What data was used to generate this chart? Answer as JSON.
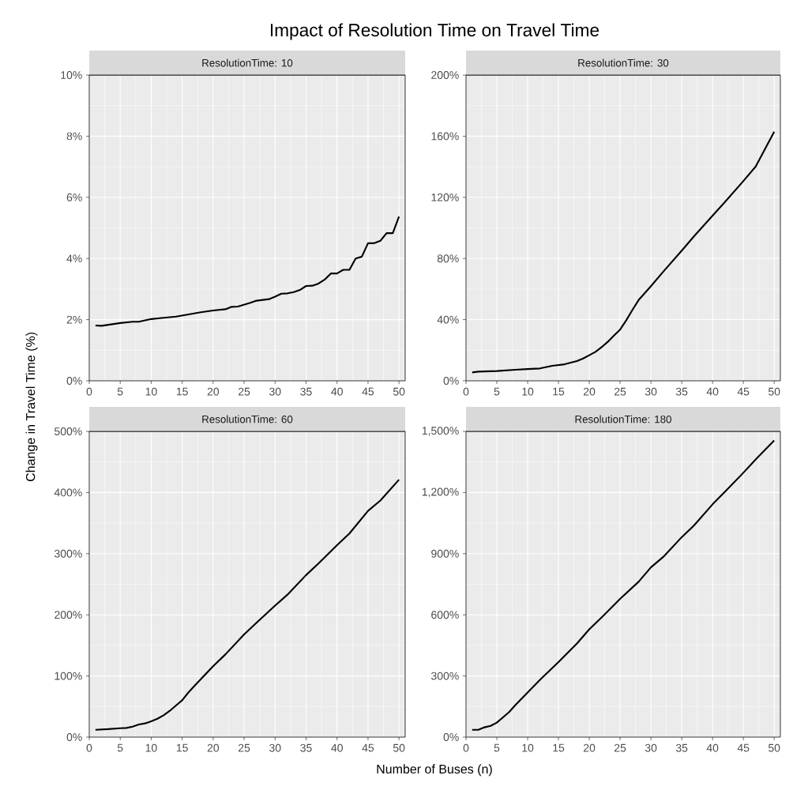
{
  "chart_data": [
    {
      "type": "line",
      "title": "ResolutionTime: 10",
      "ylabel": "Change in Travel Time (%)",
      "annotations": [
        "Impact of Resolution Time on Travel Time"
      ],
      "grid": true,
      "xlim": [
        0,
        51
      ],
      "xticks": [
        0,
        5,
        10,
        15,
        20,
        25,
        30,
        35,
        40,
        45,
        50
      ],
      "ylim": [
        0,
        10
      ],
      "yticks": [
        {
          "value": 0,
          "label": "0%"
        },
        {
          "value": 2,
          "label": "2%"
        },
        {
          "value": 4,
          "label": "4%"
        },
        {
          "value": 6,
          "label": "6%"
        },
        {
          "value": 8,
          "label": "8%"
        },
        {
          "value": 10,
          "label": "10%"
        }
      ],
      "series": [
        {
          "color": "#000000",
          "x": [
            1,
            2,
            3,
            5,
            7,
            8,
            10,
            12,
            14,
            16,
            18,
            20,
            22,
            23,
            24,
            26,
            27,
            29,
            30,
            31,
            32,
            33,
            34,
            35,
            36,
            37,
            38,
            39,
            40,
            41,
            42,
            43,
            44,
            45,
            46,
            47,
            48,
            49,
            50
          ],
          "values": [
            1.81,
            1.8,
            1.83,
            1.89,
            1.93,
            1.93,
            2.02,
            2.06,
            2.1,
            2.17,
            2.24,
            2.3,
            2.34,
            2.42,
            2.43,
            2.55,
            2.62,
            2.67,
            2.75,
            2.85,
            2.86,
            2.9,
            2.97,
            3.1,
            3.11,
            3.18,
            3.31,
            3.51,
            3.51,
            3.63,
            3.63,
            4.0,
            4.06,
            4.5,
            4.5,
            4.58,
            4.83,
            4.83,
            5.37
          ]
        }
      ]
    },
    {
      "type": "line",
      "title": "ResolutionTime: 30",
      "grid": true,
      "xlim": [
        0,
        51
      ],
      "xticks": [
        0,
        5,
        10,
        15,
        20,
        25,
        30,
        35,
        40,
        45,
        50
      ],
      "ylim": [
        0,
        200
      ],
      "yticks": [
        {
          "value": 0,
          "label": "0%"
        },
        {
          "value": 40,
          "label": "40%"
        },
        {
          "value": 80,
          "label": "80%"
        },
        {
          "value": 120,
          "label": "120%"
        },
        {
          "value": 160,
          "label": "160%"
        },
        {
          "value": 200,
          "label": "200%"
        }
      ],
      "series": [
        {
          "color": "#000000",
          "x": [
            1,
            2,
            5,
            8,
            10,
            12,
            14,
            16,
            18,
            19,
            20,
            21,
            22,
            23,
            24,
            25,
            26,
            27,
            28,
            30,
            32,
            35,
            37,
            40,
            42,
            45,
            47,
            50
          ],
          "values": [
            5.5,
            6,
            6.4,
            7.2,
            7.7,
            8.1,
            9.8,
            10.8,
            12.9,
            14.6,
            16.7,
            18.9,
            22,
            25.5,
            29.6,
            33.5,
            39.6,
            46.4,
            52.8,
            61.9,
            71.4,
            85.1,
            94.6,
            108,
            116.9,
            130.7,
            140.2,
            162.9
          ]
        }
      ]
    },
    {
      "type": "line",
      "title": "ResolutionTime: 60",
      "xlabel": "Number of Buses (n)",
      "grid": true,
      "xlim": [
        0,
        51
      ],
      "xticks": [
        0,
        5,
        10,
        15,
        20,
        25,
        30,
        35,
        40,
        45,
        50
      ],
      "ylim": [
        0,
        500
      ],
      "yticks": [
        {
          "value": 0,
          "label": "0%"
        },
        {
          "value": 100,
          "label": "100%"
        },
        {
          "value": 200,
          "label": "200%"
        },
        {
          "value": 300,
          "label": "300%"
        },
        {
          "value": 400,
          "label": "400%"
        },
        {
          "value": 500,
          "label": "500%"
        }
      ],
      "series": [
        {
          "color": "#000000",
          "x": [
            1,
            3,
            5,
            6,
            7,
            8,
            9,
            10,
            11,
            12,
            13,
            14,
            15,
            16,
            17,
            18,
            20,
            22,
            25,
            27,
            30,
            32,
            35,
            37,
            40,
            42,
            45,
            47,
            50
          ],
          "values": [
            12,
            13,
            14.6,
            15,
            17.2,
            20.7,
            22.4,
            25.8,
            30,
            35.7,
            43,
            51.6,
            60.2,
            73,
            84,
            94.7,
            116,
            135.5,
            168,
            187,
            215,
            233,
            265,
            284,
            314,
            333,
            370,
            387,
            421
          ]
        }
      ]
    },
    {
      "type": "line",
      "title": "ResolutionTime: 180",
      "grid": true,
      "xlim": [
        0,
        51
      ],
      "xticks": [
        0,
        5,
        10,
        15,
        20,
        25,
        30,
        35,
        40,
        45,
        50
      ],
      "ylim": [
        0,
        1500
      ],
      "yticks": [
        {
          "value": 0,
          "label": "0%"
        },
        {
          "value": 300,
          "label": "300%"
        },
        {
          "value": 600,
          "label": "600%"
        },
        {
          "value": 900,
          "label": "900%"
        },
        {
          "value": 1200,
          "label": "1,200%"
        },
        {
          "value": 1500,
          "label": "1,500%"
        }
      ],
      "series": [
        {
          "color": "#000000",
          "x": [
            1,
            2,
            3,
            4,
            5,
            6,
            7,
            8,
            10,
            12,
            15,
            18,
            20,
            22,
            25,
            28,
            30,
            32,
            35,
            37,
            40,
            42,
            45,
            47,
            50
          ],
          "values": [
            36,
            36,
            48,
            55,
            71,
            97,
            123,
            157,
            219,
            281,
            368,
            459,
            529,
            587,
            678,
            762,
            833,
            884,
            981,
            1039,
            1142,
            1203,
            1297,
            1362,
            1455
          ]
        }
      ]
    }
  ]
}
